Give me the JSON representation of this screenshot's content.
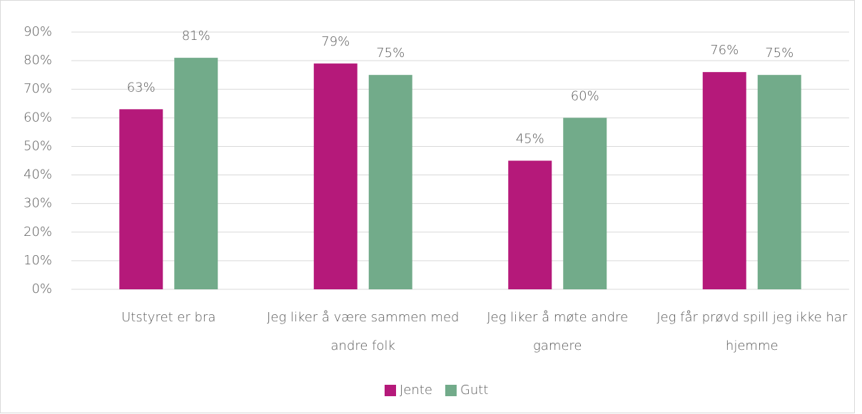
{
  "chart_data": {
    "type": "bar",
    "categories": [
      "Utstyret er bra",
      "Jeg liker å være sammen med andre folk",
      "Jeg liker å møte andre gamere",
      "Jeg får prøvd spill jeg ikke har hjemme"
    ],
    "series": [
      {
        "name": "Jente",
        "color": "#b5197a",
        "values": [
          63,
          79,
          45,
          76
        ],
        "value_labels": [
          "63%",
          "79%",
          "45%",
          "76%"
        ]
      },
      {
        "name": "Gutt",
        "color": "#72ab8a",
        "values": [
          81,
          75,
          60,
          75
        ],
        "value_labels": [
          "81%",
          "75%",
          "60%",
          "75%"
        ]
      }
    ],
    "ylim": [
      0,
      90
    ],
    "yticks": [
      {
        "value": 0,
        "label": "0%"
      },
      {
        "value": 10,
        "label": "10%"
      },
      {
        "value": 20,
        "label": "20%"
      },
      {
        "value": 30,
        "label": "30%"
      },
      {
        "value": 40,
        "label": "40%"
      },
      {
        "value": 50,
        "label": "50%"
      },
      {
        "value": 60,
        "label": "60%"
      },
      {
        "value": 70,
        "label": "70%"
      },
      {
        "value": 80,
        "label": "80%"
      },
      {
        "value": 90,
        "label": "90%"
      }
    ],
    "grid": true,
    "legend": "bottom"
  }
}
